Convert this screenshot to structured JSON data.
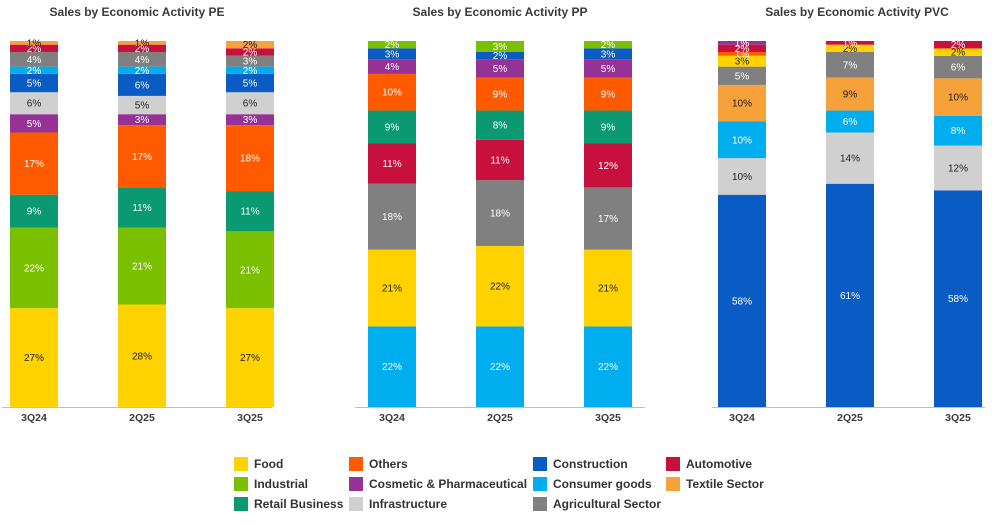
{
  "legend_items": [
    {
      "key": "food",
      "label": "Food",
      "color": "#FFD200"
    },
    {
      "key": "others",
      "label": "Others",
      "color": "#FF5A00"
    },
    {
      "key": "construction",
      "label": "Construction",
      "color": "#0A5BC4"
    },
    {
      "key": "automotive",
      "label": "Automotive",
      "color": "#C8103E"
    },
    {
      "key": "industrial",
      "label": "Industrial",
      "color": "#7AC000"
    },
    {
      "key": "cosmetic",
      "label": "Cosmetic & Pharmaceutical",
      "color": "#963296"
    },
    {
      "key": "consumer",
      "label": "Consumer goods",
      "color": "#00AEEF"
    },
    {
      "key": "textile",
      "label": "Textile Sector",
      "color": "#F7A13A"
    },
    {
      "key": "retail",
      "label": "Retail Business",
      "color": "#0A9970"
    },
    {
      "key": "infrastructure",
      "label": "Infrastructure",
      "color": "#D0D0D0"
    },
    {
      "key": "agricultural",
      "label": "Agricultural Sector",
      "color": "#808080"
    }
  ],
  "chart_data": [
    {
      "type": "bar",
      "stacked": true,
      "title": "Sales by Economic Activity PE",
      "categories": [
        "3Q24",
        "2Q25",
        "3Q25"
      ],
      "ylim": [
        0,
        100
      ],
      "series": [
        {
          "key": "food",
          "name": "Food",
          "values": [
            27,
            28,
            27
          ]
        },
        {
          "key": "industrial",
          "name": "Industrial",
          "values": [
            22,
            21,
            21
          ]
        },
        {
          "key": "retail",
          "name": "Retail Business",
          "values": [
            9,
            11,
            11
          ]
        },
        {
          "key": "others",
          "name": "Others",
          "values": [
            17,
            17,
            18
          ]
        },
        {
          "key": "cosmetic",
          "name": "Cosmetic & Pharmaceutical",
          "values": [
            5,
            3,
            3
          ]
        },
        {
          "key": "infrastructure",
          "name": "Infrastructure",
          "values": [
            6,
            5,
            6
          ]
        },
        {
          "key": "construction",
          "name": "Construction",
          "values": [
            5,
            6,
            5
          ]
        },
        {
          "key": "consumer",
          "name": "Consumer goods",
          "values": [
            2,
            2,
            2
          ]
        },
        {
          "key": "agricultural",
          "name": "Agricultural Sector",
          "values": [
            4,
            4,
            3
          ]
        },
        {
          "key": "automotive",
          "name": "Automotive",
          "values": [
            2,
            2,
            2
          ]
        },
        {
          "key": "textile",
          "name": "Textile Sector",
          "values": [
            1,
            1,
            2
          ]
        }
      ]
    },
    {
      "type": "bar",
      "stacked": true,
      "title": "Sales by Economic Activity PP",
      "categories": [
        "3Q24",
        "2Q25",
        "3Q25"
      ],
      "ylim": [
        0,
        100
      ],
      "series": [
        {
          "key": "consumer",
          "name": "Consumer goods",
          "values": [
            22,
            22,
            22
          ]
        },
        {
          "key": "food",
          "name": "Food",
          "values": [
            21,
            22,
            21
          ]
        },
        {
          "key": "agricultural",
          "name": "Agricultural Sector",
          "values": [
            18,
            18,
            17
          ]
        },
        {
          "key": "automotive",
          "name": "Automotive",
          "values": [
            11,
            11,
            12
          ]
        },
        {
          "key": "retail",
          "name": "Retail Business",
          "values": [
            9,
            8,
            9
          ]
        },
        {
          "key": "others",
          "name": "Others",
          "values": [
            10,
            9,
            9
          ]
        },
        {
          "key": "cosmetic",
          "name": "Cosmetic & Pharmaceutical",
          "values": [
            4,
            5,
            5
          ]
        },
        {
          "key": "construction",
          "name": "Construction",
          "values": [
            3,
            2,
            3
          ]
        },
        {
          "key": "industrial",
          "name": "Industrial",
          "values": [
            2,
            3,
            2
          ]
        }
      ]
    },
    {
      "type": "bar",
      "stacked": true,
      "title": "Sales by Economic Activity PVC",
      "categories": [
        "3Q24",
        "2Q25",
        "3Q25"
      ],
      "ylim": [
        0,
        100
      ],
      "series": [
        {
          "key": "construction",
          "name": "Construction",
          "values": [
            58,
            61,
            58
          ]
        },
        {
          "key": "infrastructure",
          "name": "Infrastructure",
          "values": [
            10,
            14,
            12
          ]
        },
        {
          "key": "consumer",
          "name": "Consumer goods",
          "values": [
            10,
            6,
            8
          ]
        },
        {
          "key": "textile",
          "name": "Textile Sector",
          "values": [
            10,
            9,
            10
          ]
        },
        {
          "key": "agricultural",
          "name": "Agricultural Sector",
          "values": [
            5,
            7,
            6
          ]
        },
        {
          "key": "food",
          "name": "Food",
          "values": [
            3,
            2,
            2
          ]
        },
        {
          "key": "others",
          "name": "Others",
          "values": [
            1,
            null,
            null
          ]
        },
        {
          "key": "automotive",
          "name": "Automotive",
          "values": [
            2,
            1,
            2
          ]
        },
        {
          "key": "cosmetic",
          "name": "Cosmetic & Pharmaceutical",
          "values": [
            1,
            null,
            null
          ]
        }
      ]
    }
  ]
}
